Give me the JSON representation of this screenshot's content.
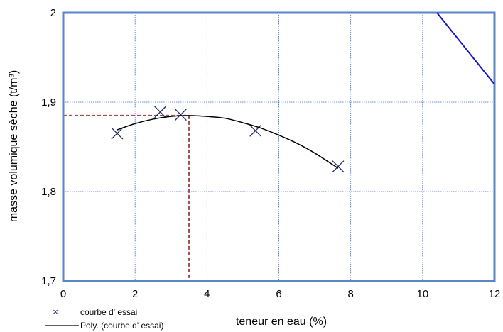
{
  "chart_data": {
    "type": "scatter",
    "xlabel": "teneur en eau (%)",
    "ylabel": "masse volumique sèche (t/m³)",
    "xlim": [
      0,
      12
    ],
    "ylim": [
      1.7,
      2.0
    ],
    "x_ticks": [
      0,
      2,
      4,
      6,
      8,
      10,
      12
    ],
    "x_tick_labels": [
      "0",
      "2",
      "4",
      "6",
      "8",
      "10",
      "12"
    ],
    "y_ticks": [
      1.7,
      1.8,
      1.9,
      2.0
    ],
    "y_tick_labels": [
      "1,7",
      "1,8",
      "1,9",
      "2"
    ],
    "grid": true,
    "series": [
      {
        "name": "courbe d' essai",
        "kind": "markers",
        "marker": "x",
        "color": "#1f2a6e",
        "x": [
          1.5,
          2.7,
          3.27,
          5.35,
          7.65
        ],
        "y": [
          1.865,
          1.889,
          1.886,
          1.868,
          1.828
        ]
      },
      {
        "name": "Poly. (courbe d' essai)",
        "kind": "trendline",
        "color": "#000000",
        "x": [
          1.5,
          2.0,
          2.5,
          3.0,
          3.5,
          4.0,
          4.5,
          5.0,
          5.5,
          6.0,
          6.5,
          7.0,
          7.65
        ],
        "y": [
          1.869,
          1.876,
          1.881,
          1.884,
          1.885,
          1.884,
          1.882,
          1.877,
          1.871,
          1.863,
          1.854,
          1.843,
          1.826
        ]
      },
      {
        "kind": "line",
        "color": "#1414c8",
        "x": [
          10.4,
          12.0
        ],
        "y": [
          2.0,
          1.92
        ]
      }
    ],
    "reference_lines": {
      "color": "#a0504a",
      "x": 3.5,
      "y": 1.885
    },
    "legend": {
      "placement": "bottom-left",
      "entries": [
        "courbe d' essai",
        "Poly. (courbe d' essai)"
      ]
    }
  }
}
